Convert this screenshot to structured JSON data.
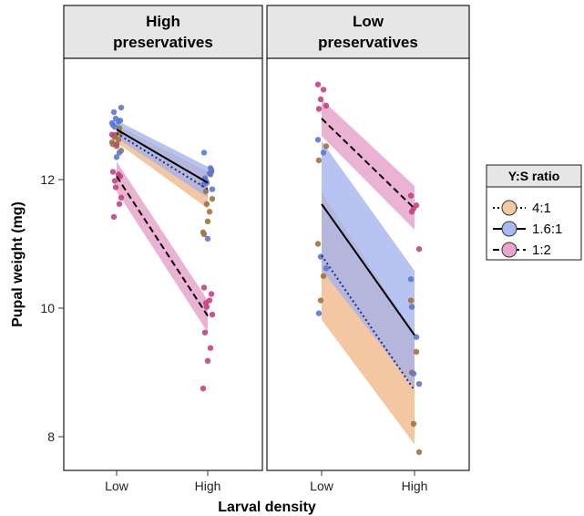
{
  "chart_data": {
    "type": "scatter",
    "xlabel": "Larval density",
    "ylabel": "Pupal weight (mg)",
    "ylim": [
      7.6,
      13.7
    ],
    "yticks": [
      8,
      10,
      12
    ],
    "categories": [
      "Low",
      "High"
    ],
    "legend": {
      "title": "Y:S ratio",
      "placement": "right",
      "entries": [
        {
          "label": "4:1",
          "color": "#E69F55",
          "fill": "#F2C9A1",
          "linetype": "dotted"
        },
        {
          "label": "1.6:1",
          "color": "#5A78D8",
          "fill": "#A9B9F2",
          "linetype": "solid"
        },
        {
          "label": "1:2",
          "color": "#C8438A",
          "fill": "#E8A6CB",
          "linetype": "dashed"
        }
      ]
    },
    "colors": {
      "4:1": {
        "point": "#A0723E",
        "band": "#EDB483",
        "line": "#1b2a8a"
      },
      "1.6:1": {
        "point": "#5C78D6",
        "band": "#9FB0EE",
        "line": "#000000"
      },
      "1:2": {
        "point": "#C3437F",
        "band": "#E39AC4",
        "line": "#000000"
      }
    },
    "panels": [
      {
        "title_lines": [
          "High",
          "preservatives"
        ],
        "series": [
          {
            "name": "4:1",
            "fit": [
              12.72,
              11.85
            ],
            "ci_low": [
              12.58,
              11.55
            ],
            "ci_high": [
              12.85,
              12.12
            ],
            "points_low": [
              12.55,
              12.62,
              12.7,
              12.45,
              12.68,
              12.8,
              12.52,
              12.58,
              12.72,
              12.66
            ],
            "points_high": [
              11.15,
              11.5,
              11.62,
              11.7,
              12.0,
              12.08,
              11.35,
              11.18,
              12.15,
              11.82
            ]
          },
          {
            "name": "1.6:1",
            "fit": [
              12.78,
              11.95
            ],
            "ci_low": [
              12.65,
              11.72
            ],
            "ci_high": [
              12.92,
              12.2
            ],
            "points_low": [
              12.85,
              12.9,
              12.95,
              13.12,
              13.05,
              12.42,
              12.35,
              12.88,
              12.92,
              12.82
            ],
            "points_high": [
              12.42,
              12.1,
              11.95,
              11.85,
              12.02,
              12.18,
              11.08,
              11.92,
              12.12,
              11.98
            ]
          },
          {
            "name": "1:2",
            "fit": [
              12.05,
              9.88
            ],
            "ci_low": [
              11.82,
              9.62
            ],
            "ci_high": [
              12.28,
              10.12
            ],
            "points_low": [
              12.12,
              12.08,
              11.88,
              11.72,
              11.42,
              11.62,
              12.55,
              12.7,
              12.05,
              11.98
            ],
            "points_high": [
              10.32,
              10.12,
              10.02,
              9.9,
              9.62,
              9.38,
              9.18,
              8.75,
              10.22,
              10.08
            ]
          }
        ]
      },
      {
        "title_lines": [
          "Low",
          "preservatives"
        ],
        "series": [
          {
            "name": "4:1",
            "fit": [
              10.82,
              8.72
            ],
            "ci_low": [
              9.82,
              7.88
            ],
            "ci_high": [
              11.8,
              9.6
            ],
            "points_low": [
              11.0,
              10.5,
              10.12,
              12.52,
              12.3
            ],
            "points_high": [
              10.12,
              9.32,
              8.2,
              7.76,
              9.0
            ]
          },
          {
            "name": "1.6:1",
            "fit": [
              11.62,
              9.58
            ],
            "ci_low": [
              10.6,
              8.75
            ],
            "ci_high": [
              12.6,
              10.58
            ],
            "points_low": [
              12.62,
              12.42,
              10.8,
              10.62,
              9.92
            ],
            "points_high": [
              10.45,
              9.55,
              8.98,
              8.82,
              10.02
            ]
          },
          {
            "name": "1:2",
            "fit": [
              12.95,
              11.55
            ],
            "ci_low": [
              12.68,
              11.22
            ],
            "ci_high": [
              13.25,
              11.9
            ],
            "points_low": [
              13.48,
              13.4,
              13.25,
              13.15,
              13.1
            ],
            "points_high": [
              11.75,
              11.6,
              11.55,
              10.92,
              11.5
            ]
          }
        ]
      }
    ]
  }
}
